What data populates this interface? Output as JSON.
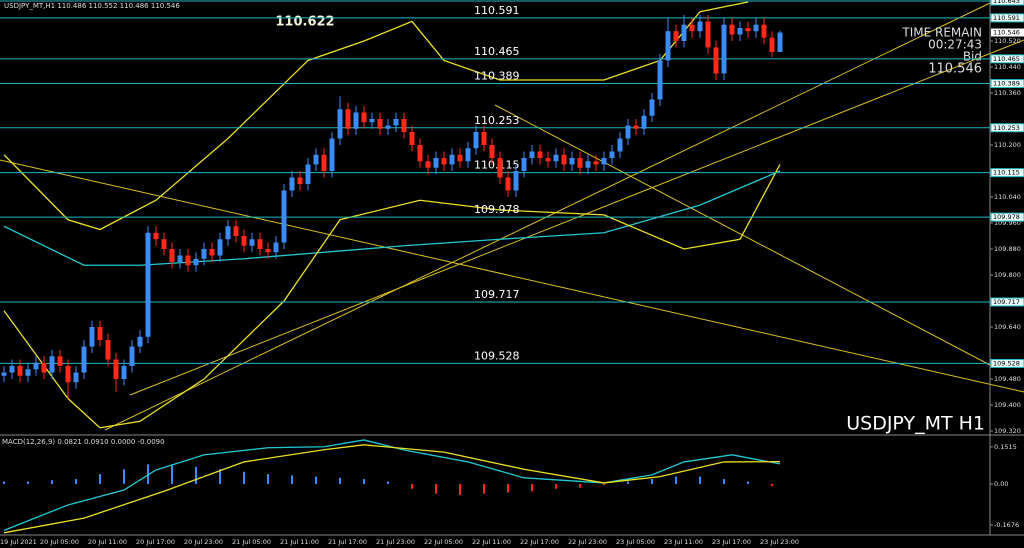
{
  "chart_data": {
    "type": "candlestick",
    "title": "USDJPY_MT,H1  110.486 110.552 110.486 110.546",
    "watermark": "USDJPY_MT H1",
    "peak_label": 110.622,
    "time_remain_label": "TIME REMAIN",
    "time_remain": "00:27:43",
    "bid_label": "Bid",
    "bid": 110.546,
    "up_color": "#3b8cf5",
    "down_color": "#ff2a1a",
    "categories": [
      "19 Jul 2021",
      null,
      null,
      null,
      null,
      "20 Jul 05:00",
      null,
      null,
      null,
      null,
      null,
      "20 Jul 11:00",
      null,
      null,
      null,
      null,
      null,
      "20 Jul 17:00",
      null,
      null,
      null,
      null,
      null,
      "20 Jul 23:00",
      null,
      null,
      null,
      null,
      null,
      "21 Jul 05:00",
      null,
      null,
      null,
      null,
      null,
      "21 Jul 11:00",
      null,
      null,
      null,
      null,
      null,
      "21 Jul 17:00",
      null,
      null,
      null,
      null,
      null,
      "21 Jul 23:00",
      null,
      null,
      null,
      null,
      null,
      "22 Jul 05:00",
      null,
      null,
      null,
      null,
      null,
      "22 Jul 11:00",
      null,
      null,
      null,
      null,
      null,
      "22 Jul 17:00",
      null,
      null,
      null,
      null,
      null,
      "22 Jul 23:00",
      null,
      null,
      null,
      null,
      null,
      "23 Jul 05:00",
      null,
      null,
      null,
      null,
      null,
      "23 Jul 11:00",
      null,
      null,
      null,
      null,
      null,
      "23 Jul 17:00",
      null,
      null,
      null,
      null,
      null,
      "23 Jul 23:00",
      null,
      null
    ],
    "open": [
      109.49,
      109.5,
      109.52,
      109.49,
      109.51,
      109.53,
      109.5,
      109.55,
      109.52,
      109.47,
      109.5,
      109.58,
      109.64,
      109.6,
      109.54,
      109.48,
      109.52,
      109.58,
      109.61,
      109.93,
      109.91,
      109.88,
      109.84,
      109.86,
      109.83,
      109.85,
      109.88,
      109.86,
      109.91,
      109.95,
      109.92,
      109.89,
      109.91,
      109.88,
      109.87,
      109.9,
      110.06,
      110.1,
      110.08,
      110.14,
      110.17,
      110.12,
      110.22,
      110.31,
      110.25,
      110.3,
      110.27,
      110.28,
      110.25,
      110.26,
      110.28,
      110.24,
      110.2,
      110.15,
      110.13,
      110.16,
      110.14,
      110.17,
      110.15,
      110.19,
      110.24,
      110.2,
      110.16,
      110.1,
      110.06,
      110.12,
      110.16,
      110.18,
      110.16,
      110.15,
      110.17,
      110.14,
      110.16,
      110.13,
      110.15,
      110.14,
      110.16,
      110.18,
      110.22,
      110.26,
      110.25,
      110.29,
      110.34,
      110.46,
      110.55,
      110.52,
      110.57,
      110.55,
      110.58,
      110.5,
      110.42,
      110.57,
      110.54,
      110.56,
      110.55,
      110.57,
      110.53,
      110.486
    ],
    "high": [
      109.52,
      109.54,
      109.54,
      109.53,
      109.55,
      109.55,
      109.57,
      109.57,
      109.54,
      109.52,
      109.6,
      109.66,
      109.66,
      109.62,
      109.56,
      109.54,
      109.6,
      109.63,
      109.95,
      109.95,
      109.93,
      109.9,
      109.88,
      109.88,
      109.87,
      109.9,
      109.9,
      109.93,
      109.97,
      109.97,
      109.94,
      109.93,
      109.93,
      109.9,
      109.92,
      110.08,
      110.12,
      110.12,
      110.16,
      110.19,
      110.19,
      110.24,
      110.35,
      110.33,
      110.32,
      110.32,
      110.3,
      110.3,
      110.28,
      110.3,
      110.3,
      110.26,
      110.22,
      110.17,
      110.18,
      110.18,
      110.19,
      110.19,
      110.21,
      110.26,
      110.26,
      110.22,
      110.18,
      110.12,
      110.14,
      110.18,
      110.2,
      110.2,
      110.18,
      110.19,
      110.19,
      110.18,
      110.18,
      110.17,
      110.17,
      110.18,
      110.2,
      110.24,
      110.28,
      110.28,
      110.31,
      110.36,
      110.48,
      110.59,
      110.57,
      110.6,
      110.59,
      110.6,
      110.6,
      110.52,
      110.59,
      110.59,
      110.58,
      110.58,
      110.59,
      110.59,
      110.55,
      110.552
    ],
    "low": [
      109.47,
      109.48,
      109.47,
      109.47,
      109.49,
      109.48,
      109.48,
      109.5,
      109.42,
      109.45,
      109.48,
      109.56,
      109.58,
      109.52,
      109.44,
      109.46,
      109.5,
      109.56,
      109.59,
      109.89,
      109.86,
      109.82,
      109.82,
      109.81,
      109.81,
      109.83,
      109.84,
      109.84,
      109.89,
      109.9,
      109.87,
      109.87,
      109.86,
      109.85,
      109.85,
      109.88,
      110.04,
      110.06,
      110.06,
      110.12,
      110.1,
      110.1,
      110.2,
      110.23,
      110.23,
      110.25,
      110.25,
      110.23,
      110.23,
      110.24,
      110.22,
      110.18,
      110.13,
      110.11,
      110.11,
      110.12,
      110.12,
      110.13,
      110.13,
      110.17,
      110.18,
      110.14,
      110.08,
      110.04,
      110.04,
      110.1,
      110.14,
      110.14,
      110.13,
      110.13,
      110.12,
      110.12,
      110.11,
      110.11,
      110.12,
      110.12,
      110.14,
      110.16,
      110.2,
      110.23,
      110.23,
      110.27,
      110.32,
      110.44,
      110.5,
      110.5,
      110.53,
      110.53,
      110.48,
      110.4,
      110.4,
      110.52,
      110.52,
      110.53,
      110.53,
      110.51,
      110.47,
      110.486
    ],
    "close": [
      109.5,
      109.52,
      109.49,
      109.51,
      109.53,
      109.5,
      109.55,
      109.52,
      109.47,
      109.5,
      109.58,
      109.64,
      109.6,
      109.54,
      109.48,
      109.52,
      109.58,
      109.61,
      109.93,
      109.91,
      109.88,
      109.84,
      109.86,
      109.83,
      109.85,
      109.88,
      109.86,
      109.91,
      109.95,
      109.92,
      109.89,
      109.91,
      109.88,
      109.87,
      109.9,
      110.06,
      110.1,
      110.08,
      110.14,
      110.17,
      110.12,
      110.22,
      110.31,
      110.25,
      110.3,
      110.27,
      110.28,
      110.25,
      110.26,
      110.28,
      110.24,
      110.2,
      110.15,
      110.13,
      110.16,
      110.14,
      110.17,
      110.15,
      110.19,
      110.24,
      110.2,
      110.16,
      110.1,
      110.06,
      110.12,
      110.16,
      110.18,
      110.16,
      110.15,
      110.17,
      110.14,
      110.16,
      110.13,
      110.15,
      110.14,
      110.16,
      110.18,
      110.22,
      110.26,
      110.25,
      110.29,
      110.34,
      110.46,
      110.55,
      110.52,
      110.57,
      110.55,
      110.58,
      110.5,
      110.42,
      110.57,
      110.54,
      110.56,
      110.55,
      110.57,
      110.53,
      110.486,
      110.546
    ],
    "ylim": [
      109.314,
      110.646
    ],
    "yticks": [
      {
        "value": 110.52,
        "label": "110.520"
      },
      {
        "value": 110.44,
        "label": "110.440"
      },
      {
        "value": 110.36,
        "label": "110.360"
      },
      {
        "value": 110.2,
        "label": "110.200"
      },
      {
        "value": 110.04,
        "label": "110.040"
      },
      {
        "value": 109.96,
        "label": "109.960"
      },
      {
        "value": 109.88,
        "label": "109.880"
      },
      {
        "value": 109.8,
        "label": "109.800"
      },
      {
        "value": 109.64,
        "label": "109.640"
      },
      {
        "value": 109.48,
        "label": "109.480"
      },
      {
        "value": 109.4,
        "label": "109.400"
      },
      {
        "value": 109.32,
        "label": "109.320"
      }
    ],
    "level_color": "#1fb8c0",
    "levels": [
      110.643,
      110.591,
      110.465,
      110.389,
      110.253,
      110.115,
      109.978,
      109.717,
      109.528
    ],
    "indicators": [
      {
        "color": "#20c8d0",
        "x": [
          0,
          10,
          17,
          30,
          50,
          62,
          75,
          87,
          97
        ],
        "values": [
          109.95,
          109.83,
          109.83,
          109.85,
          109.89,
          109.91,
          109.93,
          110.015,
          110.12
        ]
      },
      {
        "color": "#e8e020",
        "x": [
          0,
          8,
          12,
          19,
          28,
          38,
          45,
          51,
          55,
          62,
          75,
          82,
          87,
          93
        ],
        "values": [
          110.17,
          109.97,
          109.94,
          110.03,
          110.22,
          110.46,
          110.52,
          110.58,
          110.46,
          110.4,
          110.4,
          110.46,
          110.61,
          110.64
        ]
      },
      {
        "color": "#e8e020",
        "x": [
          0,
          8,
          12,
          17,
          25,
          35,
          42,
          52,
          62,
          75,
          85,
          92,
          97
        ],
        "values": [
          109.69,
          109.42,
          109.33,
          109.35,
          109.48,
          109.72,
          109.97,
          110.03,
          110.0,
          109.985,
          109.88,
          109.91,
          110.14
        ]
      }
    ],
    "macd": {
      "title": "MACD(12,26,9) 0.0821 0.0910 0.0000 -0.0090",
      "ylim": [
        -0.209,
        0.192
      ],
      "yticks": [
        0.1515,
        {
          "value": 0,
          "label": "0.00"
        },
        -0.1676
      ],
      "histogram": {
        "x": [
          0,
          3,
          6,
          9,
          12,
          15,
          18,
          21,
          24,
          27,
          30,
          33,
          36,
          39,
          42,
          45,
          48,
          51,
          54,
          57,
          60,
          63,
          66,
          69,
          72,
          75,
          78,
          81,
          84,
          87,
          90,
          93,
          96
        ],
        "values": [
          0.01,
          0.01,
          0.015,
          0.02,
          0.04,
          0.06,
          0.08,
          0.08,
          0.07,
          0.06,
          0.05,
          0.04,
          0.035,
          0.03,
          0.025,
          0.02,
          0.01,
          -0.02,
          -0.04,
          -0.045,
          -0.04,
          -0.035,
          -0.03,
          -0.02,
          -0.015,
          -0.005,
          0.01,
          0.02,
          0.03,
          0.03,
          0.02,
          0.01,
          -0.009
        ]
      },
      "lines": [
        {
          "color": "#20c8d0",
          "x": [
            0,
            8,
            15,
            19,
            25,
            33,
            40,
            45,
            50,
            58,
            65,
            75,
            81,
            85,
            91,
            97
          ],
          "values": [
            -0.19,
            -0.086,
            -0.025,
            0.057,
            0.119,
            0.148,
            0.152,
            0.18,
            0.139,
            0.09,
            0.025,
            0.004,
            0.037,
            0.09,
            0.119,
            0.0821
          ]
        },
        {
          "color": "#e8e020",
          "x": [
            0,
            10,
            20,
            30,
            40,
            45,
            55,
            65,
            75,
            82,
            90,
            97
          ],
          "values": [
            -0.2,
            -0.14,
            -0.03,
            0.09,
            0.14,
            0.16,
            0.13,
            0.06,
            0.004,
            0.03,
            0.09,
            0.091
          ]
        }
      ]
    }
  }
}
